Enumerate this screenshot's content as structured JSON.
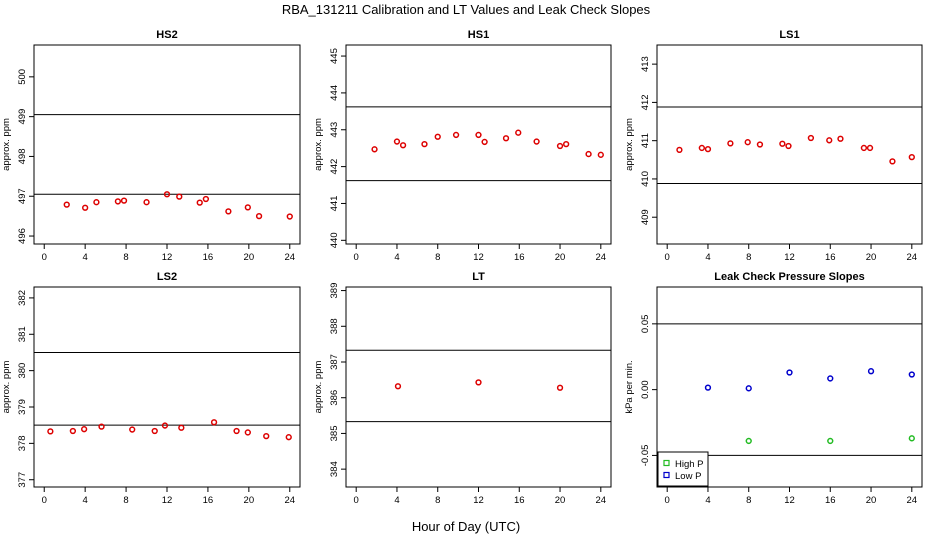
{
  "figure": {
    "title": "RBA_131211  Calibration and LT Values and Leak Check Slopes",
    "xlabel": "Hour of Day (UTC)"
  },
  "colors": {
    "points": "#dd0000",
    "high_p": "#22bb22",
    "low_p": "#0000cc",
    "axis": "#000000"
  },
  "chart_data": [
    {
      "type": "scatter",
      "title": "HS2",
      "ylabel": "approx. ppm",
      "xlim": [
        -1,
        25
      ],
      "ylim": [
        495.8,
        500.8
      ],
      "xticks": [
        0,
        4,
        8,
        12,
        16,
        20,
        24
      ],
      "yticks": [
        496,
        497,
        498,
        499,
        500
      ],
      "hlines": [
        497.05,
        499.05
      ],
      "x": [
        2.2,
        4.0,
        5.1,
        7.2,
        7.8,
        10.0,
        12.0,
        13.2,
        15.2,
        15.8,
        18.0,
        19.9,
        21.0,
        24.0
      ],
      "y": [
        496.79,
        496.71,
        496.85,
        496.87,
        496.89,
        496.85,
        497.05,
        496.99,
        496.84,
        496.93,
        496.62,
        496.72,
        496.5,
        496.49
      ]
    },
    {
      "type": "scatter",
      "title": "HS1",
      "ylabel": "approx. ppm",
      "xlim": [
        -1,
        25
      ],
      "ylim": [
        439.9,
        445.3
      ],
      "xticks": [
        0,
        4,
        8,
        12,
        16,
        20,
        24
      ],
      "yticks": [
        440,
        441,
        442,
        443,
        444,
        445
      ],
      "hlines": [
        441.62,
        443.62
      ],
      "x": [
        1.8,
        4.0,
        4.6,
        6.7,
        8.0,
        9.8,
        12.0,
        12.6,
        14.7,
        15.9,
        17.7,
        20.0,
        20.6,
        22.8,
        24.0
      ],
      "y": [
        442.47,
        442.68,
        442.58,
        442.61,
        442.81,
        442.86,
        442.86,
        442.67,
        442.77,
        442.92,
        442.68,
        442.56,
        442.61,
        442.34,
        442.32
      ]
    },
    {
      "type": "scatter",
      "title": "LS1",
      "ylabel": "approx. ppm",
      "xlim": [
        -1,
        25
      ],
      "ylim": [
        408.3,
        413.5
      ],
      "xticks": [
        0,
        4,
        8,
        12,
        16,
        20,
        24
      ],
      "yticks": [
        409,
        410,
        411,
        412,
        413
      ],
      "hlines": [
        409.88,
        411.88
      ],
      "x": [
        1.2,
        3.4,
        4.0,
        6.2,
        7.9,
        9.1,
        11.3,
        11.9,
        14.1,
        15.9,
        17.0,
        19.3,
        19.9,
        22.1,
        24.0
      ],
      "y": [
        410.76,
        410.81,
        410.78,
        410.93,
        410.96,
        410.9,
        410.92,
        410.86,
        411.07,
        411.01,
        411.05,
        410.81,
        410.81,
        410.46,
        410.57
      ]
    },
    {
      "type": "scatter",
      "title": "LS2",
      "ylabel": "approx. ppm",
      "xlim": [
        -1,
        25
      ],
      "ylim": [
        376.8,
        382.3
      ],
      "xticks": [
        0,
        4,
        8,
        12,
        16,
        20,
        24
      ],
      "yticks": [
        377,
        378,
        379,
        380,
        381,
        382
      ],
      "hlines": [
        378.5,
        380.5
      ],
      "x": [
        0.6,
        2.8,
        3.9,
        5.6,
        8.6,
        10.8,
        11.8,
        13.4,
        16.6,
        18.8,
        19.9,
        21.7,
        23.9
      ],
      "y": [
        378.33,
        378.34,
        378.39,
        378.46,
        378.38,
        378.34,
        378.49,
        378.43,
        378.58,
        378.34,
        378.3,
        378.2,
        378.17
      ]
    },
    {
      "type": "scatter",
      "title": "LT",
      "ylabel": "approx. ppm",
      "xlim": [
        -1,
        25
      ],
      "ylim": [
        383.5,
        389.1
      ],
      "xticks": [
        0,
        4,
        8,
        12,
        16,
        20,
        24
      ],
      "yticks": [
        384,
        385,
        386,
        387,
        388,
        389
      ],
      "hlines": [
        385.33,
        387.33
      ],
      "x": [
        4.1,
        12.0,
        20.0
      ],
      "y": [
        386.32,
        386.43,
        386.28
      ]
    },
    {
      "type": "scatter",
      "title": "Leak Check Pressure Slopes",
      "ylabel": "kPa per min.",
      "xlim": [
        -1,
        25
      ],
      "ylim": [
        -0.074,
        0.078
      ],
      "xticks": [
        0,
        4,
        8,
        12,
        16,
        20,
        24
      ],
      "yticks": [
        -0.05,
        0.0,
        0.05
      ],
      "ytick_labels": [
        "-0.05",
        "0.00",
        "0.05"
      ],
      "hlines": [
        -0.05,
        0.05
      ],
      "legend": {
        "position": "bottom-left",
        "entries": [
          "High P",
          "Low P"
        ]
      },
      "series": [
        {
          "name": "High P",
          "x": [
            8,
            16,
            24
          ],
          "y": [
            -0.039,
            -0.039,
            -0.037
          ]
        },
        {
          "name": "Low P",
          "x": [
            4,
            8,
            12,
            16,
            20,
            24
          ],
          "y": [
            0.0015,
            0.001,
            0.013,
            0.0085,
            0.014,
            0.0115
          ]
        }
      ]
    }
  ]
}
